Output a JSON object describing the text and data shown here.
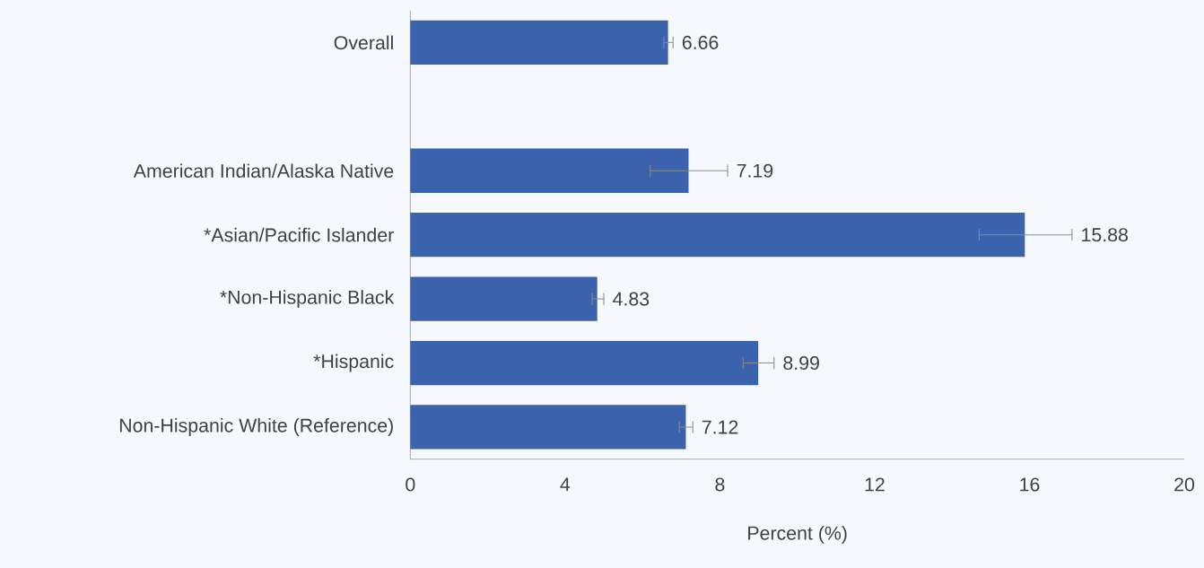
{
  "chart_data": {
    "type": "bar",
    "orientation": "horizontal",
    "xlabel": "Percent (%)",
    "categories": [
      "Overall",
      null,
      "American Indian/Alaska Native",
      "*Asian/Pacific Islander",
      "*Non-Hispanic Black",
      "*Hispanic",
      "Non-Hispanic White (Reference)"
    ],
    "values": [
      6.66,
      null,
      7.19,
      15.88,
      4.83,
      8.99,
      7.12
    ],
    "errors": [
      [
        6.55,
        6.79
      ],
      null,
      [
        6.2,
        8.2
      ],
      [
        14.7,
        17.1
      ],
      [
        4.7,
        5.0
      ],
      [
        8.6,
        9.4
      ],
      [
        6.95,
        7.3
      ]
    ],
    "color": "#3a62ad",
    "data_labels": true,
    "xlim": [
      0,
      20
    ],
    "xticks": [
      0,
      4,
      8,
      12,
      16,
      20
    ],
    "grid": false
  }
}
